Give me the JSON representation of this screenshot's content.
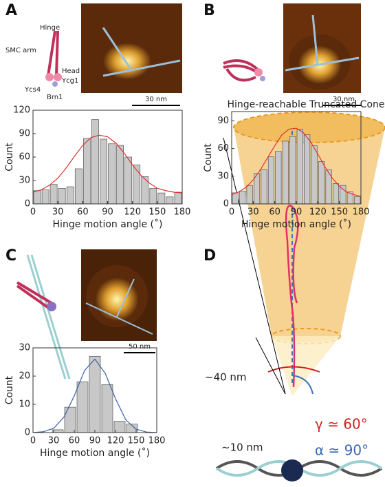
{
  "chart_data": [
    {
      "type": "histogram",
      "bins": [
        0,
        10,
        20,
        30,
        40,
        50,
        60,
        70,
        80,
        90,
        100,
        110,
        120,
        130,
        140,
        150,
        160,
        170,
        180
      ],
      "values": [
        17,
        18,
        25,
        20,
        22,
        45,
        84,
        108,
        83,
        77,
        75,
        60,
        50,
        35,
        20,
        14,
        9,
        15
      ],
      "color": "#c8c8c8",
      "fit": {
        "x": [
          0,
          10,
          20,
          30,
          40,
          50,
          60,
          70,
          80,
          90,
          100,
          110,
          120,
          130,
          140,
          150,
          160,
          170,
          180
        ],
        "values": [
          15,
          18,
          24,
          33,
          46,
          61,
          75,
          85,
          88,
          86,
          78,
          65,
          50,
          37,
          27,
          20,
          17,
          15,
          14
        ],
        "color": "#e03030"
      },
      "xlim": [
        0,
        180
      ],
      "xticks": [
        0,
        30,
        60,
        90,
        120,
        150,
        180
      ],
      "ylim": [
        0,
        120
      ],
      "yticks": [
        0,
        30,
        60,
        90,
        120
      ],
      "xlabel": "Hinge motion angle (˚)",
      "ylabel": "Count"
    },
    {
      "type": "histogram",
      "bins": [
        0,
        10,
        20,
        30,
        40,
        50,
        60,
        70,
        80,
        90,
        100,
        110,
        120,
        130,
        140,
        150,
        160,
        170,
        180
      ],
      "values": [
        12,
        14,
        20,
        33,
        37,
        51,
        57,
        68,
        73,
        81,
        75,
        63,
        46,
        37,
        22,
        20,
        13,
        8
      ],
      "color": "#c8c8c8",
      "fit": {
        "x": [
          0,
          10,
          20,
          30,
          40,
          50,
          60,
          70,
          80,
          90,
          100,
          110,
          120,
          130,
          140,
          150,
          160,
          170,
          180
        ],
        "values": [
          10,
          13,
          18,
          26,
          37,
          50,
          63,
          75,
          81,
          82,
          77,
          67,
          54,
          40,
          28,
          19,
          13,
          10,
          8
        ],
        "color": "#e03030"
      },
      "xlim": [
        0,
        180
      ],
      "xticks": [
        0,
        30,
        60,
        90,
        120,
        150,
        180
      ],
      "ylim": [
        0,
        100
      ],
      "yticks": [
        0,
        30,
        60,
        90
      ],
      "xlabel": "Hinge motion angle (˚)",
      "ylabel": "Count"
    },
    {
      "type": "histogram",
      "bins": [
        27,
        45,
        63,
        81,
        99,
        117,
        135,
        153
      ],
      "values": [
        1,
        9,
        18,
        27,
        17,
        4,
        3
      ],
      "color": "#c8c8c8",
      "fit": {
        "x": [
          0,
          15,
          30,
          45,
          60,
          75,
          90,
          105,
          120,
          135,
          150,
          165,
          180
        ],
        "values": [
          0,
          0.3,
          1.5,
          5.5,
          13,
          22,
          26,
          21,
          12,
          4.5,
          1.2,
          0.2,
          0
        ],
        "color": "#3a5fa0"
      },
      "xlim": [
        0,
        180
      ],
      "xticks": [
        0,
        30,
        60,
        90,
        120,
        150,
        180
      ],
      "ylim": [
        0,
        30
      ],
      "yticks": [
        0,
        10,
        20,
        30
      ],
      "xlabel": "Hinge motion angle (˚)",
      "ylabel": "Count"
    }
  ],
  "panel_letters": [
    "A",
    "B",
    "C",
    "D"
  ],
  "schematic_labels": [
    "Hinge",
    "SMC arm",
    "Head",
    "Ycg1",
    "Ycs4",
    "Brn1"
  ],
  "scale_bars": [
    "30 nm",
    "30 nm",
    "50 nm"
  ],
  "panel_d": {
    "title": "Hinge-reachable Truncated Cone",
    "length_long": "~40 nm",
    "length_short": "~10 nm",
    "gamma": "γ ≃ 60°",
    "alpha": "α ≃ 90°"
  }
}
